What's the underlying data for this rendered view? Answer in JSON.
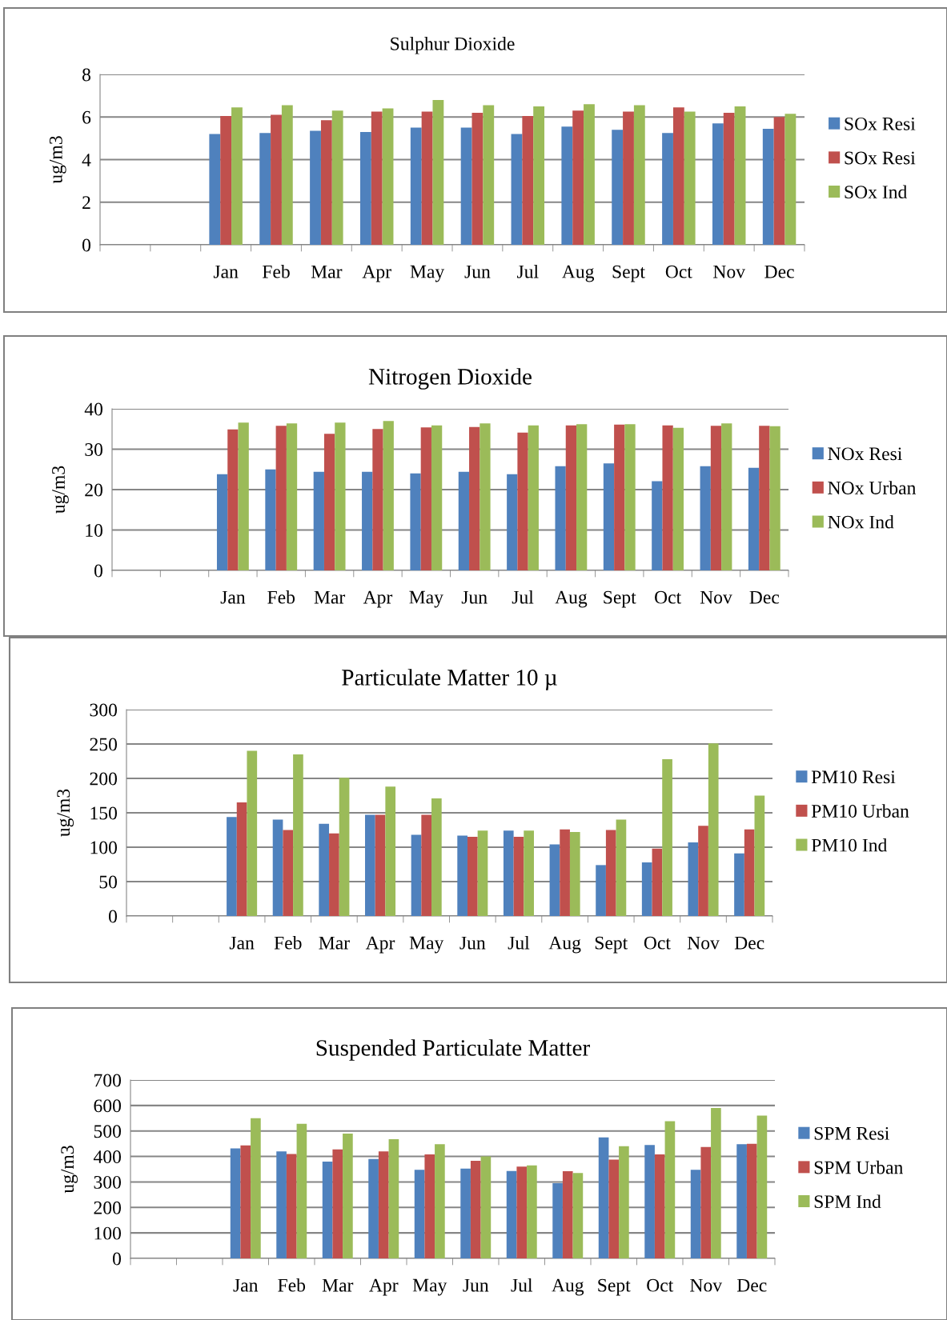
{
  "chart_data": [
    {
      "type": "bar",
      "title": "Sulphur Dioxide",
      "ylabel": "ug/m3",
      "categories": [
        null,
        null,
        "Jan",
        "Feb",
        "Mar",
        "Apr",
        "May",
        "Jun",
        "Jul",
        "Aug",
        "Sept",
        "Oct",
        "Nov",
        "Dec"
      ],
      "ylim": [
        0,
        8
      ],
      "yticks": [
        0,
        2,
        4,
        6,
        8
      ],
      "grid": "y",
      "legend": "right",
      "series": [
        {
          "name": "SOx Resi",
          "color": "#4f81bd",
          "values": [
            null,
            null,
            5.2,
            5.25,
            5.35,
            5.3,
            5.5,
            5.5,
            5.2,
            5.55,
            5.4,
            5.25,
            5.7,
            5.45
          ]
        },
        {
          "name": "SOx Resi",
          "color": "#c0504d",
          "values": [
            null,
            null,
            6.05,
            6.1,
            5.85,
            6.25,
            6.25,
            6.2,
            6.05,
            6.3,
            6.25,
            6.45,
            6.2,
            6.0
          ]
        },
        {
          "name": "SOx Ind",
          "color": "#9bbb59",
          "values": [
            null,
            null,
            6.45,
            6.55,
            6.3,
            6.4,
            6.8,
            6.55,
            6.5,
            6.6,
            6.55,
            6.25,
            6.5,
            6.15
          ]
        }
      ]
    },
    {
      "type": "bar",
      "title": "Nitrogen Dioxide",
      "ylabel": "ug/m3",
      "categories": [
        null,
        null,
        "Jan",
        "Feb",
        "Mar",
        "Apr",
        "May",
        "Jun",
        "Jul",
        "Aug",
        "Sept",
        "Oct",
        "Nov",
        "Dec"
      ],
      "ylim": [
        0,
        40
      ],
      "yticks": [
        0,
        10,
        20,
        30,
        40
      ],
      "grid": "y",
      "legend": "right",
      "series": [
        {
          "name": "NOx Resi",
          "color": "#4f81bd",
          "values": [
            null,
            null,
            23.8,
            25,
            24.4,
            24.4,
            24,
            24.4,
            23.8,
            25.8,
            26.5,
            22.1,
            25.8,
            25.4
          ]
        },
        {
          "name": "NOx Urban",
          "color": "#c0504d",
          "values": [
            null,
            null,
            34.9,
            35.8,
            33.8,
            35,
            35.4,
            35.5,
            34.1,
            35.9,
            36.1,
            35.9,
            35.8,
            35.8
          ]
        },
        {
          "name": "NOx Ind",
          "color": "#9bbb59",
          "values": [
            null,
            null,
            36.6,
            36.4,
            36.6,
            37,
            35.9,
            36.4,
            35.9,
            36.2,
            36.2,
            35.3,
            36.4,
            35.7
          ]
        }
      ]
    },
    {
      "type": "bar",
      "title": "Particulate Matter 10 µ",
      "ylabel": "ug/m3",
      "categories": [
        null,
        null,
        "Jan",
        "Feb",
        "Mar",
        "Apr",
        "May",
        "Jun",
        "Jul",
        "Aug",
        "Sept",
        "Oct",
        "Nov",
        "Dec"
      ],
      "ylim": [
        0,
        300
      ],
      "yticks": [
        0,
        50,
        100,
        150,
        200,
        250,
        300
      ],
      "grid": "y",
      "legend": "right",
      "series": [
        {
          "name": "PM10 Resi",
          "color": "#4f81bd",
          "values": [
            null,
            null,
            144,
            140,
            134,
            147,
            118,
            117,
            124,
            104,
            74,
            78,
            107,
            91
          ]
        },
        {
          "name": "PM10 Urban",
          "color": "#c0504d",
          "values": [
            null,
            null,
            165,
            125,
            120,
            147,
            147,
            115,
            115,
            126,
            125,
            98,
            131,
            126
          ]
        },
        {
          "name": "PM10 Ind",
          "color": "#9bbb59",
          "values": [
            null,
            null,
            240,
            235,
            201,
            188,
            171,
            124,
            124,
            122,
            140,
            228,
            251,
            175
          ]
        }
      ]
    },
    {
      "type": "bar",
      "title": "Suspended Particulate Matter",
      "ylabel": "ug/m3",
      "categories": [
        null,
        null,
        "Jan",
        "Feb",
        "Mar",
        "Apr",
        "May",
        "Jun",
        "Jul",
        "Aug",
        "Sept",
        "Oct",
        "Nov",
        "Dec"
      ],
      "ylim": [
        0,
        700
      ],
      "yticks": [
        0,
        100,
        200,
        300,
        400,
        500,
        600,
        700
      ],
      "grid": "y",
      "legend": "right",
      "series": [
        {
          "name": "SPM Resi",
          "color": "#4f81bd",
          "values": [
            null,
            null,
            432,
            420,
            380,
            390,
            348,
            352,
            343,
            295,
            475,
            445,
            348,
            448
          ]
        },
        {
          "name": "SPM Urban",
          "color": "#c0504d",
          "values": [
            null,
            null,
            443,
            410,
            428,
            420,
            408,
            383,
            360,
            342,
            388,
            408,
            437,
            450
          ]
        },
        {
          "name": "SPM Ind",
          "color": "#9bbb59",
          "values": [
            null,
            null,
            550,
            528,
            490,
            468,
            448,
            400,
            365,
            335,
            440,
            538,
            590,
            560
          ]
        }
      ]
    }
  ]
}
